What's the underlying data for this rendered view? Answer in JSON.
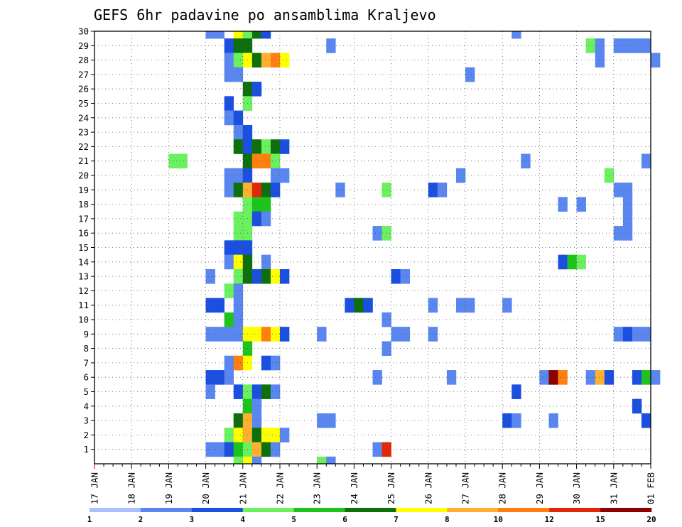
{
  "chart_data": {
    "type": "heatmap",
    "title": "GEFS 6hr padavine po ansamblima Kraljevo",
    "x_tick_labels": [
      "17 JAN",
      "18 JAN",
      "19 JAN",
      "20 JAN",
      "21 JAN",
      "22 JAN",
      "23 JAN",
      "24 JAN",
      "25 JAN",
      "26 JAN",
      "27 JAN",
      "28 JAN",
      "29 JAN",
      "30 JAN",
      "31 JAN",
      "01 FEB"
    ],
    "y_tick_labels": [
      "1",
      "2",
      "3",
      "4",
      "5",
      "6",
      "7",
      "8",
      "9",
      "10",
      "11",
      "12",
      "13",
      "14",
      "15",
      "16",
      "17",
      "18",
      "19",
      "20",
      "21",
      "22",
      "23",
      "24",
      "25",
      "26",
      "27",
      "28",
      "29",
      "30"
    ],
    "ylim": [
      0,
      30
    ],
    "grid": true,
    "x_unit": "6-hour steps since 17 JAN 00Z",
    "colorbar": {
      "labels": [
        "1",
        "2",
        "3",
        "4",
        "5",
        "6",
        "7",
        "8",
        "10",
        "12",
        "15",
        "20"
      ],
      "colors": [
        "#a9c0fb",
        "#5a86f0",
        "#1a4fe0",
        "#6bf060",
        "#1cc41c",
        "#0d700d",
        "#ffff00",
        "#ffb030",
        "#ff7f10",
        "#e02808",
        "#8b0000"
      ]
    },
    "cells": [
      [
        12,
        30,
        1
      ],
      [
        13,
        30,
        1
      ],
      [
        15,
        30,
        6
      ],
      [
        16,
        30,
        3
      ],
      [
        17,
        30,
        5
      ],
      [
        18,
        30,
        2
      ],
      [
        45,
        30,
        1
      ],
      [
        14,
        29,
        2
      ],
      [
        15,
        29,
        5
      ],
      [
        16,
        29,
        5
      ],
      [
        25,
        29,
        1
      ],
      [
        53,
        29,
        3
      ],
      [
        54,
        29,
        1
      ],
      [
        56,
        29,
        1
      ],
      [
        57,
        29,
        1
      ],
      [
        58,
        29,
        1
      ],
      [
        59,
        29,
        1
      ],
      [
        14,
        28,
        1
      ],
      [
        15,
        28,
        3
      ],
      [
        16,
        28,
        6
      ],
      [
        17,
        28,
        5
      ],
      [
        18,
        28,
        7
      ],
      [
        19,
        28,
        8
      ],
      [
        20,
        28,
        6
      ],
      [
        54,
        28,
        1
      ],
      [
        60,
        28,
        1
      ],
      [
        14,
        27,
        1
      ],
      [
        15,
        27,
        1
      ],
      [
        40,
        27,
        1
      ],
      [
        16,
        26,
        5
      ],
      [
        17,
        26,
        2
      ],
      [
        14,
        25,
        2
      ],
      [
        16,
        25,
        3
      ],
      [
        14,
        24,
        1
      ],
      [
        15,
        24,
        2
      ],
      [
        15,
        23,
        1
      ],
      [
        16,
        23,
        2
      ],
      [
        15,
        22,
        5
      ],
      [
        16,
        22,
        2
      ],
      [
        17,
        22,
        5
      ],
      [
        18,
        22,
        3
      ],
      [
        19,
        22,
        5
      ],
      [
        20,
        22,
        2
      ],
      [
        8,
        21,
        3
      ],
      [
        9,
        21,
        3
      ],
      [
        16,
        21,
        5
      ],
      [
        17,
        21,
        8
      ],
      [
        18,
        21,
        8
      ],
      [
        19,
        21,
        3
      ],
      [
        46,
        21,
        1
      ],
      [
        59,
        21,
        1
      ],
      [
        14,
        20,
        1
      ],
      [
        15,
        20,
        1
      ],
      [
        16,
        20,
        2
      ],
      [
        19,
        20,
        1
      ],
      [
        20,
        20,
        1
      ],
      [
        39,
        20,
        1
      ],
      [
        55,
        20,
        3
      ],
      [
        14,
        19,
        1
      ],
      [
        15,
        19,
        5
      ],
      [
        16,
        19,
        7
      ],
      [
        17,
        19,
        9
      ],
      [
        18,
        19,
        5
      ],
      [
        19,
        19,
        2
      ],
      [
        26,
        19,
        1
      ],
      [
        31,
        19,
        3
      ],
      [
        36,
        19,
        2
      ],
      [
        37,
        19,
        1
      ],
      [
        56,
        19,
        1
      ],
      [
        57,
        19,
        1
      ],
      [
        16,
        18,
        3
      ],
      [
        17,
        18,
        4
      ],
      [
        18,
        18,
        4
      ],
      [
        50,
        18,
        1
      ],
      [
        52,
        18,
        1
      ],
      [
        57,
        18,
        1
      ],
      [
        15,
        17,
        3
      ],
      [
        16,
        17,
        3
      ],
      [
        17,
        17,
        2
      ],
      [
        18,
        17,
        1
      ],
      [
        57,
        17,
        1
      ],
      [
        15,
        16,
        3
      ],
      [
        16,
        16,
        3
      ],
      [
        30,
        16,
        1
      ],
      [
        31,
        16,
        3
      ],
      [
        56,
        16,
        1
      ],
      [
        57,
        16,
        1
      ],
      [
        14,
        15,
        2
      ],
      [
        15,
        15,
        2
      ],
      [
        16,
        15,
        2
      ],
      [
        14,
        14,
        1
      ],
      [
        15,
        14,
        6
      ],
      [
        16,
        14,
        5
      ],
      [
        18,
        14,
        1
      ],
      [
        50,
        14,
        2
      ],
      [
        51,
        14,
        4
      ],
      [
        52,
        14,
        3
      ],
      [
        12,
        13,
        1
      ],
      [
        15,
        13,
        3
      ],
      [
        16,
        13,
        5
      ],
      [
        17,
        13,
        2
      ],
      [
        18,
        13,
        5
      ],
      [
        19,
        13,
        6
      ],
      [
        20,
        13,
        2
      ],
      [
        32,
        13,
        2
      ],
      [
        33,
        13,
        1
      ],
      [
        14,
        12,
        3
      ],
      [
        15,
        12,
        1
      ],
      [
        12,
        11,
        2
      ],
      [
        13,
        11,
        2
      ],
      [
        15,
        11,
        1
      ],
      [
        27,
        11,
        2
      ],
      [
        28,
        11,
        5
      ],
      [
        29,
        11,
        2
      ],
      [
        36,
        11,
        1
      ],
      [
        39,
        11,
        1
      ],
      [
        40,
        11,
        1
      ],
      [
        44,
        11,
        1
      ],
      [
        14,
        10,
        4
      ],
      [
        15,
        10,
        1
      ],
      [
        31,
        10,
        1
      ],
      [
        12,
        9,
        1
      ],
      [
        13,
        9,
        1
      ],
      [
        14,
        9,
        1
      ],
      [
        15,
        9,
        1
      ],
      [
        16,
        9,
        6
      ],
      [
        17,
        9,
        6
      ],
      [
        18,
        9,
        8
      ],
      [
        19,
        9,
        6
      ],
      [
        20,
        9,
        2
      ],
      [
        24,
        9,
        1
      ],
      [
        32,
        9,
        1
      ],
      [
        33,
        9,
        1
      ],
      [
        36,
        9,
        1
      ],
      [
        56,
        9,
        1
      ],
      [
        57,
        9,
        2
      ],
      [
        58,
        9,
        1
      ],
      [
        59,
        9,
        1
      ],
      [
        16,
        8,
        4
      ],
      [
        31,
        8,
        1
      ],
      [
        14,
        7,
        1
      ],
      [
        15,
        7,
        8
      ],
      [
        16,
        7,
        6
      ],
      [
        18,
        7,
        2
      ],
      [
        19,
        7,
        1
      ],
      [
        12,
        6,
        2
      ],
      [
        13,
        6,
        2
      ],
      [
        14,
        6,
        1
      ],
      [
        30,
        6,
        1
      ],
      [
        38,
        6,
        1
      ],
      [
        48,
        6,
        1
      ],
      [
        49,
        6,
        10
      ],
      [
        50,
        6,
        8
      ],
      [
        53,
        6,
        1
      ],
      [
        54,
        6,
        7
      ],
      [
        55,
        6,
        2
      ],
      [
        58,
        6,
        2
      ],
      [
        59,
        6,
        4
      ],
      [
        60,
        6,
        1
      ],
      [
        12,
        5,
        1
      ],
      [
        15,
        5,
        2
      ],
      [
        16,
        5,
        3
      ],
      [
        17,
        5,
        2
      ],
      [
        18,
        5,
        5
      ],
      [
        19,
        5,
        1
      ],
      [
        45,
        5,
        2
      ],
      [
        16,
        4,
        4
      ],
      [
        17,
        4,
        1
      ],
      [
        58,
        4,
        2
      ],
      [
        15,
        3,
        5
      ],
      [
        16,
        3,
        7
      ],
      [
        17,
        3,
        1
      ],
      [
        24,
        3,
        1
      ],
      [
        25,
        3,
        1
      ],
      [
        44,
        3,
        2
      ],
      [
        45,
        3,
        1
      ],
      [
        49,
        3,
        1
      ],
      [
        59,
        3,
        2
      ],
      [
        14,
        2,
        3
      ],
      [
        15,
        2,
        6
      ],
      [
        16,
        2,
        7
      ],
      [
        17,
        2,
        5
      ],
      [
        18,
        2,
        6
      ],
      [
        19,
        2,
        6
      ],
      [
        20,
        2,
        1
      ],
      [
        12,
        1,
        1
      ],
      [
        13,
        1,
        1
      ],
      [
        14,
        1,
        2
      ],
      [
        15,
        1,
        4
      ],
      [
        16,
        1,
        3
      ],
      [
        17,
        1,
        7
      ],
      [
        18,
        1,
        5
      ],
      [
        19,
        1,
        1
      ],
      [
        30,
        1,
        1
      ],
      [
        31,
        1,
        9
      ],
      [
        15,
        0,
        3
      ],
      [
        16,
        0,
        6
      ],
      [
        17,
        0,
        1
      ],
      [
        24,
        0,
        3
      ],
      [
        25,
        0,
        1
      ]
    ]
  }
}
